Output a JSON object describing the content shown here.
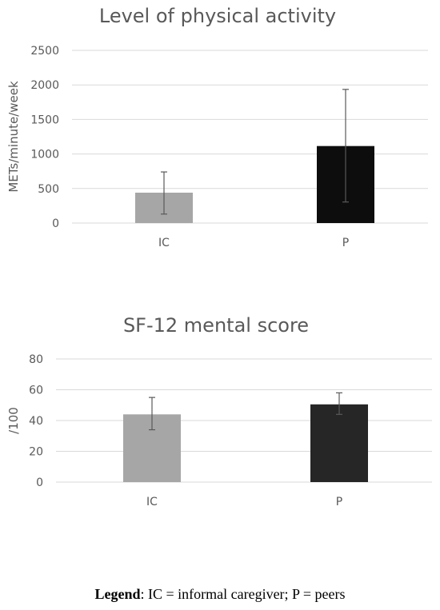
{
  "chart_data": [
    {
      "type": "bar",
      "title": "Level of physical activity",
      "ylabel": "METs/minute/week",
      "ylim": [
        0,
        2500
      ],
      "yticks": [
        0,
        500,
        1000,
        1500,
        2000,
        2500
      ],
      "categories": [
        "IC",
        "P"
      ],
      "values": [
        440,
        1115
      ],
      "error_low": [
        130,
        305
      ],
      "error_high": [
        740,
        1935
      ],
      "colors": [
        "#a6a6a6",
        "#0d0d0d"
      ],
      "grid": true
    },
    {
      "type": "bar",
      "title": "SF-12 mental score",
      "ylabel": "/100",
      "ylim": [
        0,
        80
      ],
      "yticks": [
        0,
        20,
        40,
        60,
        80
      ],
      "categories": [
        "IC",
        "P"
      ],
      "values": [
        44,
        50.5
      ],
      "error_low": [
        34,
        44
      ],
      "error_high": [
        55,
        58
      ],
      "colors": [
        "#a6a6a6",
        "#262626"
      ],
      "grid": true
    }
  ],
  "legend": {
    "label": "Legend",
    "text": ": IC = informal caregiver; P = peers"
  }
}
